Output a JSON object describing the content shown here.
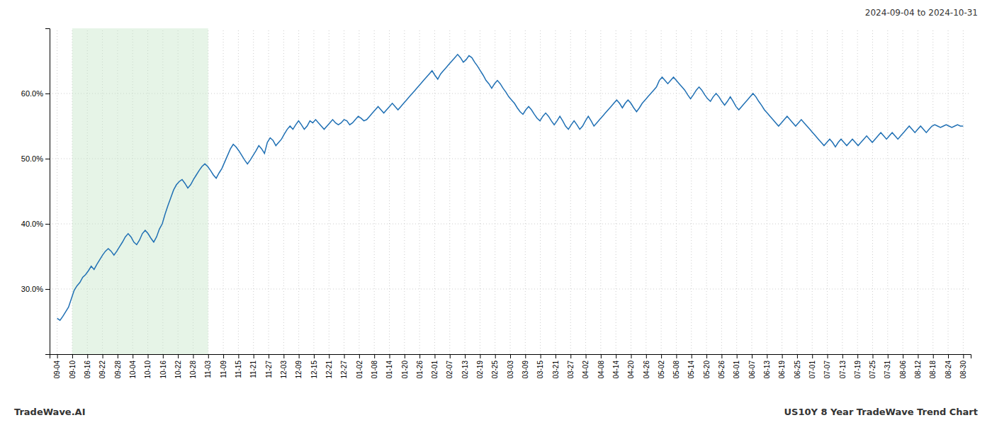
{
  "chart_data": {
    "type": "line",
    "title": "US10Y 8 Year TradeWave Trend Chart",
    "subtitle": "2024-09-04 to 2024-10-31",
    "annotations": [
      "TradeWave.AI"
    ],
    "color": "#2070b4",
    "grid": true,
    "xlim": [
      -0.5,
      60.5
    ],
    "xticks": [
      {
        "value": 0,
        "label": "09-04"
      },
      {
        "value": 1,
        "label": "09-10"
      },
      {
        "value": 2,
        "label": "09-16"
      },
      {
        "value": 3,
        "label": "09-22"
      },
      {
        "value": 4,
        "label": "09-28"
      },
      {
        "value": 5,
        "label": "10-04"
      },
      {
        "value": 6,
        "label": "10-10"
      },
      {
        "value": 7,
        "label": "10-16"
      },
      {
        "value": 8,
        "label": "10-22"
      },
      {
        "value": 9,
        "label": "10-28"
      },
      {
        "value": 10,
        "label": "11-03"
      },
      {
        "value": 11,
        "label": "11-09"
      },
      {
        "value": 12,
        "label": "11-15"
      },
      {
        "value": 13,
        "label": "11-21"
      },
      {
        "value": 14,
        "label": "11-27"
      },
      {
        "value": 15,
        "label": "12-03"
      },
      {
        "value": 16,
        "label": "12-09"
      },
      {
        "value": 17,
        "label": "12-15"
      },
      {
        "value": 18,
        "label": "12-21"
      },
      {
        "value": 19,
        "label": "12-27"
      },
      {
        "value": 20,
        "label": "01-02"
      },
      {
        "value": 21,
        "label": "01-08"
      },
      {
        "value": 22,
        "label": "01-14"
      },
      {
        "value": 23,
        "label": "01-20"
      },
      {
        "value": 24,
        "label": "01-26"
      },
      {
        "value": 25,
        "label": "02-01"
      },
      {
        "value": 26,
        "label": "02-07"
      },
      {
        "value": 27,
        "label": "02-13"
      },
      {
        "value": 28,
        "label": "02-19"
      },
      {
        "value": 29,
        "label": "02-25"
      },
      {
        "value": 30,
        "label": "03-03"
      },
      {
        "value": 31,
        "label": "03-09"
      },
      {
        "value": 32,
        "label": "03-15"
      },
      {
        "value": 33,
        "label": "03-21"
      },
      {
        "value": 34,
        "label": "03-27"
      },
      {
        "value": 35,
        "label": "04-02"
      },
      {
        "value": 36,
        "label": "04-08"
      },
      {
        "value": 37,
        "label": "04-14"
      },
      {
        "value": 38,
        "label": "04-20"
      },
      {
        "value": 39,
        "label": "04-26"
      },
      {
        "value": 40,
        "label": "05-02"
      },
      {
        "value": 41,
        "label": "05-08"
      },
      {
        "value": 42,
        "label": "05-14"
      },
      {
        "value": 43,
        "label": "05-20"
      },
      {
        "value": 44,
        "label": "05-26"
      },
      {
        "value": 45,
        "label": "06-01"
      },
      {
        "value": 46,
        "label": "06-07"
      },
      {
        "value": 47,
        "label": "06-13"
      },
      {
        "value": 48,
        "label": "06-19"
      },
      {
        "value": 49,
        "label": "06-25"
      },
      {
        "value": 50,
        "label": "07-01"
      },
      {
        "value": 51,
        "label": "07-07"
      },
      {
        "value": 52,
        "label": "07-13"
      },
      {
        "value": 53,
        "label": "07-19"
      },
      {
        "value": 54,
        "label": "07-25"
      },
      {
        "value": 55,
        "label": "07-31"
      },
      {
        "value": 56,
        "label": "08-06"
      },
      {
        "value": 57,
        "label": "08-12"
      },
      {
        "value": 58,
        "label": "08-18"
      },
      {
        "value": 59,
        "label": "08-24"
      },
      {
        "value": 60,
        "label": "08-30"
      }
    ],
    "ylim": [
      20,
      70
    ],
    "yticks": [
      {
        "value": 30.0,
        "label": "30.0%"
      },
      {
        "value": 40.0,
        "label": "40.0%"
      },
      {
        "value": 50.0,
        "label": "50.0%"
      },
      {
        "value": 60.0,
        "label": "60.0%"
      }
    ],
    "shaded_region": {
      "x_start": 1,
      "x_end": 10,
      "color": "#c8e6c9"
    },
    "values": [
      25.5,
      25.2,
      25.8,
      26.5,
      27.2,
      28.5,
      29.8,
      30.5,
      31.0,
      31.8,
      32.2,
      32.8,
      33.5,
      33.0,
      33.8,
      34.5,
      35.2,
      35.8,
      36.2,
      35.8,
      35.2,
      35.8,
      36.5,
      37.2,
      38.0,
      38.5,
      38.0,
      37.2,
      36.8,
      37.5,
      38.5,
      39.0,
      38.5,
      37.8,
      37.2,
      38.0,
      39.2,
      40.0,
      41.5,
      42.8,
      44.0,
      45.2,
      46.0,
      46.5,
      46.8,
      46.2,
      45.5,
      46.0,
      46.8,
      47.5,
      48.2,
      48.8,
      49.2,
      48.8,
      48.2,
      47.5,
      47.0,
      47.8,
      48.5,
      49.5,
      50.5,
      51.5,
      52.2,
      51.8,
      51.2,
      50.5,
      49.8,
      49.2,
      49.8,
      50.5,
      51.2,
      52.0,
      51.5,
      50.8,
      52.5,
      53.2,
      52.8,
      52.0,
      52.5,
      53.0,
      53.8,
      54.5,
      55.0,
      54.5,
      55.2,
      55.8,
      55.2,
      54.5,
      55.0,
      55.8,
      55.5,
      56.0,
      55.5,
      55.0,
      54.5,
      55.0,
      55.5,
      56.0,
      55.5,
      55.2,
      55.5,
      56.0,
      55.8,
      55.2,
      55.5,
      56.0,
      56.5,
      56.2,
      55.8,
      56.0,
      56.5,
      57.0,
      57.5,
      58.0,
      57.5,
      57.0,
      57.5,
      58.0,
      58.5,
      58.0,
      57.5,
      58.0,
      58.5,
      59.0,
      59.5,
      60.0,
      60.5,
      61.0,
      61.5,
      62.0,
      62.5,
      63.0,
      63.5,
      62.8,
      62.2,
      63.0,
      63.5,
      64.0,
      64.5,
      65.0,
      65.5,
      66.0,
      65.5,
      64.8,
      65.2,
      65.8,
      65.5,
      64.8,
      64.2,
      63.5,
      62.8,
      62.0,
      61.5,
      60.8,
      61.5,
      62.0,
      61.5,
      60.8,
      60.2,
      59.5,
      59.0,
      58.5,
      57.8,
      57.2,
      56.8,
      57.5,
      58.0,
      57.5,
      56.8,
      56.2,
      55.8,
      56.5,
      57.0,
      56.5,
      55.8,
      55.2,
      55.8,
      56.5,
      55.8,
      55.0,
      54.5,
      55.2,
      55.8,
      55.2,
      54.5,
      55.0,
      55.8,
      56.5,
      55.8,
      55.0,
      55.5,
      56.0,
      56.5,
      57.0,
      57.5,
      58.0,
      58.5,
      59.0,
      58.5,
      57.8,
      58.5,
      59.0,
      58.5,
      57.8,
      57.2,
      57.8,
      58.5,
      59.0,
      59.5,
      60.0,
      60.5,
      61.0,
      62.0,
      62.5,
      62.0,
      61.5,
      62.0,
      62.5,
      62.0,
      61.5,
      61.0,
      60.5,
      59.8,
      59.2,
      59.8,
      60.5,
      61.0,
      60.5,
      59.8,
      59.2,
      58.8,
      59.5,
      60.0,
      59.5,
      58.8,
      58.2,
      58.8,
      59.5,
      58.8,
      58.0,
      57.5,
      58.0,
      58.5,
      59.0,
      59.5,
      60.0,
      59.5,
      58.8,
      58.2,
      57.5,
      57.0,
      56.5,
      56.0,
      55.5,
      55.0,
      55.5,
      56.0,
      56.5,
      56.0,
      55.5,
      55.0,
      55.5,
      56.0,
      55.5,
      55.0,
      54.5,
      54.0,
      53.5,
      53.0,
      52.5,
      52.0,
      52.5,
      53.0,
      52.5,
      51.8,
      52.5,
      53.0,
      52.5,
      52.0,
      52.5,
      53.0,
      52.5,
      52.0,
      52.5,
      53.0,
      53.5,
      53.0,
      52.5,
      53.0,
      53.5,
      54.0,
      53.5,
      53.0,
      53.5,
      54.0,
      53.5,
      53.0,
      53.5,
      54.0,
      54.5,
      55.0,
      54.5,
      54.0,
      54.5,
      55.0,
      54.5,
      54.0,
      54.5,
      55.0,
      55.2,
      55.0,
      54.8,
      55.0,
      55.2,
      55.0,
      54.8,
      55.0,
      55.2,
      55.0,
      55.0
    ]
  }
}
